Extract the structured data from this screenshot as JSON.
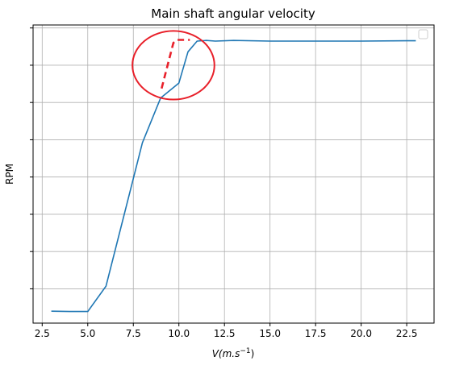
{
  "chart_data": {
    "type": "line",
    "title": "Main shaft angular velocity",
    "xlabel_prefix": "V",
    "xlabel_units": "(m.s",
    "xlabel_exponent": "−1",
    "xlabel_close": ")",
    "ylabel": "RPM",
    "xlim": [
      2.0,
      24.0
    ],
    "ylim": [
      0.0,
      1.0
    ],
    "xticks": [
      2.5,
      5.0,
      7.5,
      10.0,
      12.5,
      15.0,
      17.5,
      20.0,
      22.5
    ],
    "xtick_labels": [
      "2.5",
      "5.0",
      "7.5",
      "10.0",
      "12.5",
      "15.0",
      "17.5",
      "20.0",
      "22.5"
    ],
    "yticks": [
      0.115,
      0.24,
      0.365,
      0.49,
      0.615,
      0.74,
      0.865,
      0.99
    ],
    "ytick_labels": [],
    "grid": true,
    "legend": "top-right (empty)",
    "series": [
      {
        "color": "#1f77b4",
        "x": [
          3,
          4,
          5,
          6,
          7,
          8,
          9,
          10,
          10.5,
          11,
          11.5,
          12,
          13,
          15,
          17.5,
          20,
          22.5,
          23
        ],
        "y": [
          0.04,
          0.039,
          0.039,
          0.124,
          0.365,
          0.605,
          0.755,
          0.805,
          0.91,
          0.946,
          0.948,
          0.946,
          0.948,
          0.946,
          0.946,
          0.946,
          0.947,
          0.947
        ]
      }
    ],
    "annotations": [
      {
        "type": "ellipse",
        "color": "#e8202a",
        "center": [
          9.7,
          0.865
        ],
        "radius_x": 2.25,
        "radius_y": 0.115
      },
      {
        "type": "dashed-line",
        "color": "#e8202a",
        "x": [
          9.05,
          9.7,
          9.9,
          10.6
        ],
        "y": [
          0.787,
          0.94,
          0.95,
          0.95
        ]
      }
    ]
  }
}
